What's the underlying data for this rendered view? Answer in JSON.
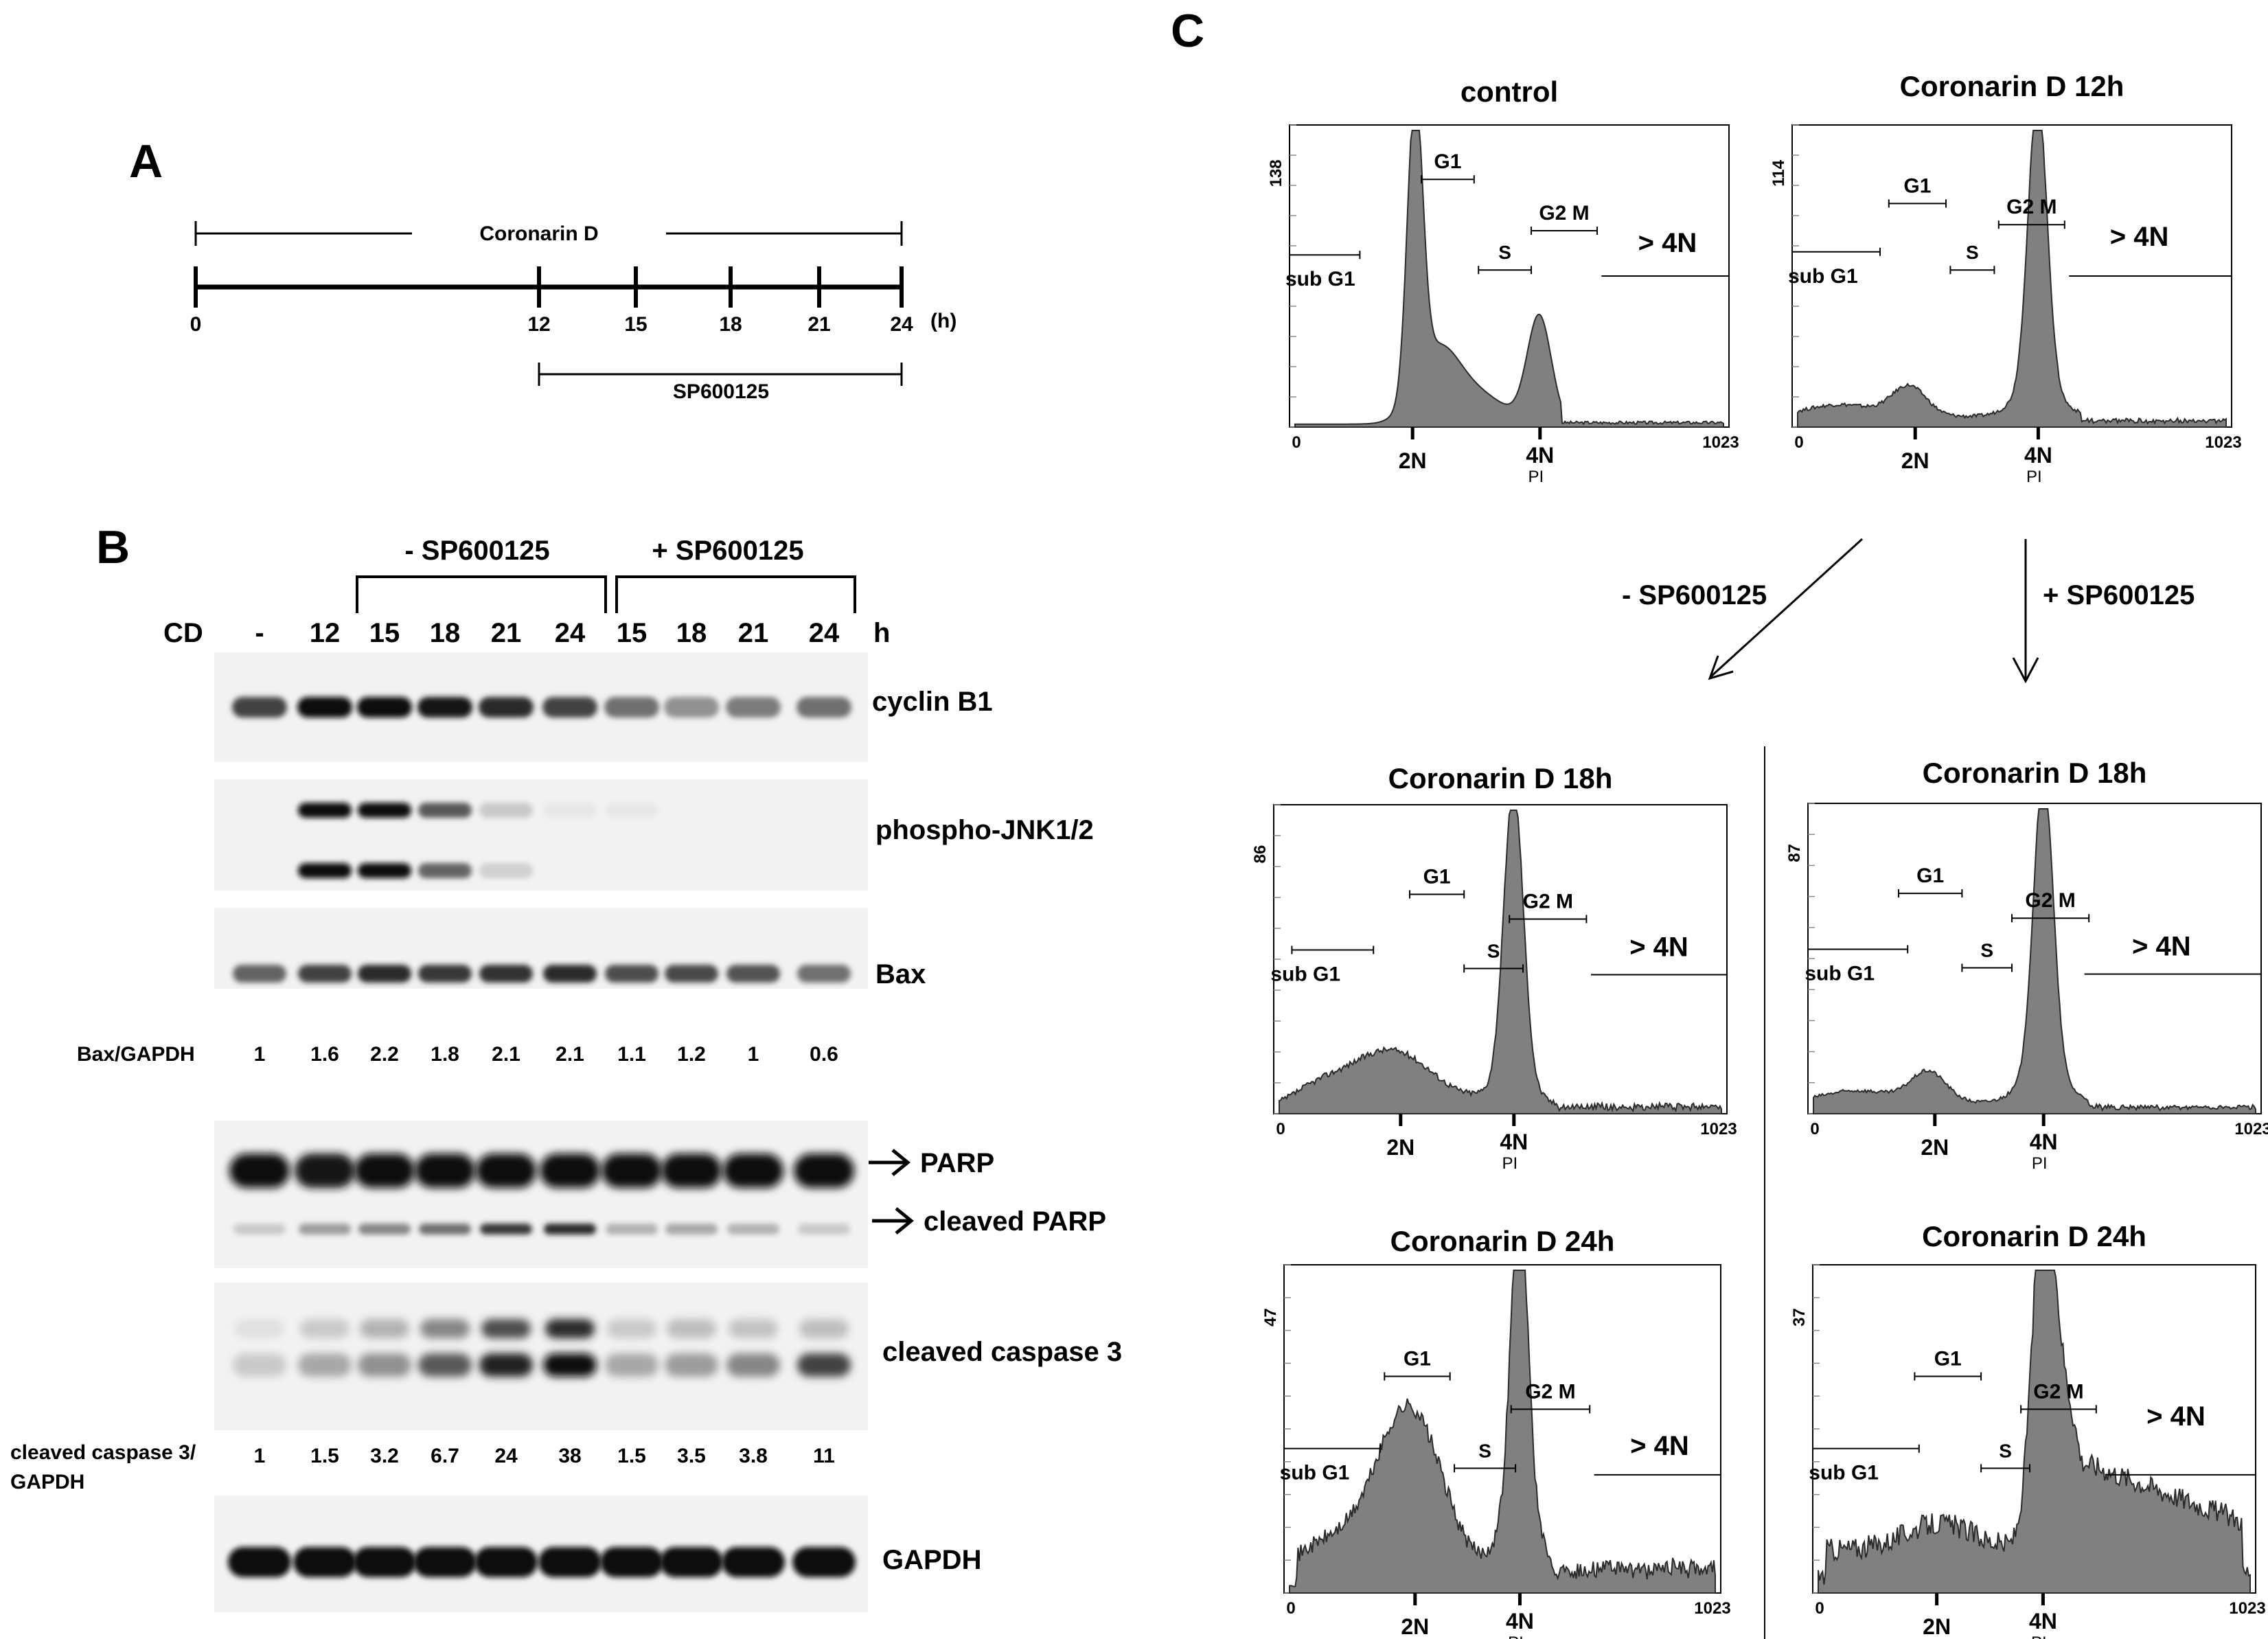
{
  "panel_a": {
    "letter": "A",
    "cd_label": "Coronarin D",
    "sp_label": "SP600125",
    "ticks": [
      "0",
      "12",
      "15",
      "18",
      "21",
      "24"
    ],
    "unit": "(h)"
  },
  "panel_b": {
    "letter": "B",
    "minus_sp": "- SP600125",
    "plus_sp": "+ SP600125",
    "cd_label": "CD",
    "h_label": "h",
    "lanes": [
      "-",
      "12",
      "15",
      "18",
      "21",
      "24",
      "15",
      "18",
      "21",
      "24"
    ],
    "blots": {
      "cyclin": "cyclin B1",
      "pjnk": "phospho-JNK1/2",
      "bax": "Bax",
      "parp": "PARP",
      "cleaved_parp": "cleaved PARP",
      "casp": "cleaved caspase 3",
      "gapdh": "GAPDH"
    },
    "bax_ratio_label": "Bax/GAPDH",
    "bax_ratios": [
      "1",
      "1.6",
      "2.2",
      "1.8",
      "2.1",
      "2.1",
      "1.1",
      "1.2",
      "1",
      "0.6"
    ],
    "casp_ratio_label_1": "cleaved caspase 3/",
    "casp_ratio_label_2": "GAPDH",
    "casp_ratios": [
      "1",
      "1.5",
      "3.2",
      "6.7",
      "24",
      "38",
      "1.5",
      "3.5",
      "3.8",
      "11"
    ],
    "band_intensity": {
      "cyclin": [
        0.75,
        1.0,
        1.0,
        0.95,
        0.85,
        0.75,
        0.55,
        0.4,
        0.5,
        0.55
      ],
      "pjnk_top": [
        0,
        1.0,
        1.0,
        0.65,
        0.15,
        0.02,
        0.02,
        0,
        0,
        0
      ],
      "pjnk_bottom": [
        0,
        1.0,
        1.0,
        0.6,
        0.12,
        0,
        0,
        0,
        0,
        0
      ],
      "bax": [
        0.6,
        0.75,
        0.85,
        0.8,
        0.82,
        0.85,
        0.7,
        0.72,
        0.68,
        0.55
      ],
      "parp": [
        1.0,
        0.95,
        1.0,
        1.0,
        1.0,
        1.0,
        1.0,
        1.0,
        1.0,
        1.0
      ],
      "cleaved_parp": [
        0.15,
        0.35,
        0.45,
        0.55,
        0.8,
        0.85,
        0.25,
        0.3,
        0.25,
        0.15
      ],
      "casp_top": [
        0.05,
        0.15,
        0.25,
        0.45,
        0.7,
        0.85,
        0.15,
        0.2,
        0.18,
        0.2
      ],
      "casp_bottom": [
        0.15,
        0.3,
        0.4,
        0.65,
        0.9,
        1.0,
        0.3,
        0.35,
        0.45,
        0.75
      ],
      "gapdh": [
        1.0,
        1.0,
        1.0,
        1.0,
        1.0,
        1.0,
        1.0,
        1.0,
        1.0,
        1.0
      ]
    }
  },
  "panel_c": {
    "letter": "C",
    "arrow_minus": "- SP600125",
    "arrow_plus": "+ SP600125",
    "gate_labels": {
      "sub_g1": "sub G1",
      "g1": "G1",
      "s": "S",
      "g2m": "G2 M",
      "gt4n": "> 4N"
    },
    "axis": {
      "zero": "0",
      "max": "1023",
      "two_n": "2N",
      "four_n": "4N",
      "pi": "PI"
    },
    "histograms": [
      {
        "id": "control",
        "title": "control",
        "ymax": "138",
        "profile": "control"
      },
      {
        "id": "cd12",
        "title": "Coronarin D 12h",
        "ymax": "114",
        "profile": "g2m_arrest"
      },
      {
        "id": "cd18_minus",
        "title": "Coronarin D 18h",
        "ymax": "86",
        "profile": "subg1_rise"
      },
      {
        "id": "cd18_plus",
        "title": "Coronarin D 18h",
        "ymax": "87",
        "profile": "g2m_arrest"
      },
      {
        "id": "cd24_minus",
        "title": "Coronarin D 24h",
        "ymax": "47",
        "profile": "apoptotic"
      },
      {
        "id": "cd24_plus",
        "title": "Coronarin D 24h",
        "ymax": "37",
        "profile": "polyploid"
      }
    ]
  }
}
